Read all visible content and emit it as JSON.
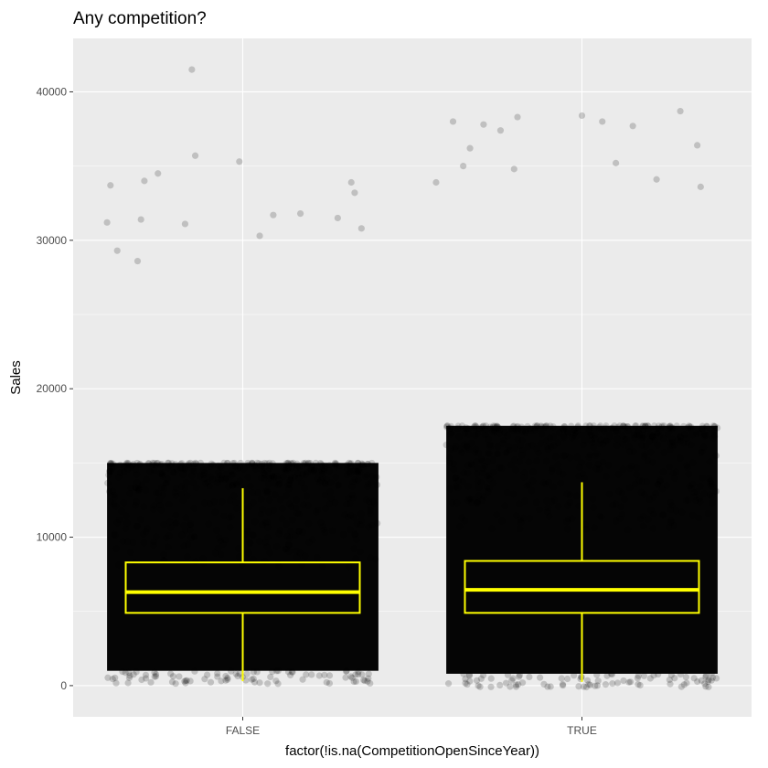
{
  "chart_data": {
    "type": "scatter",
    "title": "Any competition?",
    "xlabel": "factor(!is.na(CompetitionOpenSinceYear))",
    "ylabel": "Sales",
    "categories": [
      "FALSE",
      "TRUE"
    ],
    "y_ticks": [
      0,
      10000,
      20000,
      30000,
      40000
    ],
    "y_tick_labels": [
      "0",
      "10000",
      "20000",
      "30000",
      "40000"
    ],
    "ylim": [
      -2100,
      43600
    ],
    "grid": true,
    "point_color": "#000000",
    "point_alpha": 0.15,
    "box_color": "#ffff00",
    "panel_background": "#ebebeb",
    "boxplots": [
      {
        "category": "FALSE",
        "lower_whisker": 300,
        "q1": 4900,
        "median": 6300,
        "q3": 8300,
        "upper_whisker": 13300
      },
      {
        "category": "TRUE",
        "lower_whisker": 250,
        "q1": 4900,
        "median": 6450,
        "q3": 8400,
        "upper_whisker": 13700
      }
    ],
    "dense_band": [
      {
        "category": "FALSE",
        "from": 1000,
        "to": 15000
      },
      {
        "category": "TRUE",
        "from": 800,
        "to": 17500
      }
    ],
    "outliers": [
      {
        "category": "FALSE",
        "points": [
          [
            -0.15,
            41500
          ],
          [
            -0.39,
            33700
          ],
          [
            -0.29,
            34000
          ],
          [
            -0.25,
            34500
          ],
          [
            -0.14,
            35700
          ],
          [
            -0.01,
            35300
          ],
          [
            -0.4,
            31200
          ],
          [
            -0.3,
            31400
          ],
          [
            0.32,
            33900
          ],
          [
            0.33,
            33200
          ],
          [
            -0.17,
            31100
          ],
          [
            -0.37,
            29300
          ],
          [
            -0.31,
            28600
          ],
          [
            0.09,
            31700
          ],
          [
            0.28,
            31500
          ],
          [
            0.35,
            30800
          ],
          [
            0.17,
            31800
          ],
          [
            0.05,
            30300
          ]
        ]
      },
      {
        "category": "TRUE",
        "points": [
          [
            -0.38,
            38000
          ],
          [
            -0.29,
            37800
          ],
          [
            -0.19,
            38300
          ],
          [
            0.0,
            38400
          ],
          [
            0.06,
            38000
          ],
          [
            0.15,
            37700
          ],
          [
            0.29,
            38700
          ],
          [
            0.34,
            36400
          ],
          [
            -0.33,
            36200
          ],
          [
            -0.35,
            35000
          ],
          [
            -0.2,
            34800
          ],
          [
            0.22,
            34100
          ],
          [
            -0.43,
            33900
          ],
          [
            0.1,
            35200
          ],
          [
            0.35,
            33600
          ],
          [
            -0.24,
            37400
          ]
        ]
      }
    ]
  }
}
